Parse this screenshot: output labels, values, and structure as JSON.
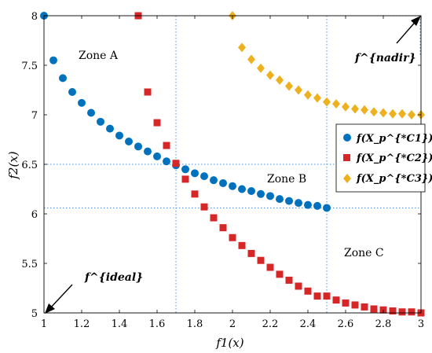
{
  "chart_data": {
    "type": "scatter",
    "xlabel": "f1(x)",
    "ylabel": "f2(x)",
    "xlim": [
      1,
      3
    ],
    "ylim": [
      5,
      8
    ],
    "xticks": [
      "1",
      "1.2",
      "1.4",
      "1.6",
      "1.8",
      "2",
      "2.2",
      "2.4",
      "2.6",
      "2.8",
      "3"
    ],
    "yticks": [
      "5",
      "5.5",
      "6",
      "6.5",
      "7",
      "7.5",
      "8"
    ],
    "grid": false,
    "legend_position": "right",
    "series": [
      {
        "name": "f(X_p^{*C1})",
        "marker": "circle",
        "color": "#0072BD",
        "points": [
          [
            1.0,
            8.0
          ],
          [
            1.05,
            7.55
          ],
          [
            1.1,
            7.37
          ],
          [
            1.15,
            7.23
          ],
          [
            1.2,
            7.12
          ],
          [
            1.25,
            7.02
          ],
          [
            1.3,
            6.93
          ],
          [
            1.35,
            6.86
          ],
          [
            1.4,
            6.79
          ],
          [
            1.45,
            6.73
          ],
          [
            1.5,
            6.68
          ],
          [
            1.55,
            6.63
          ],
          [
            1.6,
            6.58
          ],
          [
            1.65,
            6.53
          ],
          [
            1.7,
            6.49
          ],
          [
            1.75,
            6.45
          ],
          [
            1.8,
            6.41
          ],
          [
            1.85,
            6.38
          ],
          [
            1.9,
            6.34
          ],
          [
            1.95,
            6.31
          ],
          [
            2.0,
            6.28
          ],
          [
            2.05,
            6.25
          ],
          [
            2.1,
            6.23
          ],
          [
            2.15,
            6.2
          ],
          [
            2.2,
            6.18
          ],
          [
            2.25,
            6.15
          ],
          [
            2.3,
            6.13
          ],
          [
            2.35,
            6.11
          ],
          [
            2.4,
            6.09
          ],
          [
            2.45,
            6.08
          ],
          [
            2.5,
            6.06
          ]
        ]
      },
      {
        "name": "f(X_p^{*C2})",
        "marker": "square",
        "color": "#D62728",
        "points": [
          [
            1.5,
            8.0
          ],
          [
            1.55,
            7.23
          ],
          [
            1.6,
            6.92
          ],
          [
            1.65,
            6.69
          ],
          [
            1.7,
            6.51
          ],
          [
            1.75,
            6.35
          ],
          [
            1.8,
            6.2
          ],
          [
            1.85,
            6.07
          ],
          [
            1.9,
            5.96
          ],
          [
            1.95,
            5.86
          ],
          [
            2.0,
            5.76
          ],
          [
            2.05,
            5.68
          ],
          [
            2.1,
            5.6
          ],
          [
            2.15,
            5.53
          ],
          [
            2.2,
            5.46
          ],
          [
            2.25,
            5.39
          ],
          [
            2.3,
            5.33
          ],
          [
            2.35,
            5.27
          ],
          [
            2.4,
            5.22
          ],
          [
            2.45,
            5.17
          ],
          [
            2.5,
            5.17
          ],
          [
            2.55,
            5.13
          ],
          [
            2.6,
            5.1
          ],
          [
            2.65,
            5.08
          ],
          [
            2.7,
            5.06
          ],
          [
            2.75,
            5.04
          ],
          [
            2.8,
            5.03
          ],
          [
            2.85,
            5.02
          ],
          [
            2.9,
            5.01
          ],
          [
            2.95,
            5.01
          ],
          [
            3.0,
            5.0
          ]
        ]
      },
      {
        "name": "f(X_p^{*C3})",
        "marker": "diamond",
        "color": "#EDB120",
        "points": [
          [
            2.0,
            8.0
          ],
          [
            2.05,
            7.68
          ],
          [
            2.1,
            7.56
          ],
          [
            2.15,
            7.47
          ],
          [
            2.2,
            7.4
          ],
          [
            2.25,
            7.35
          ],
          [
            2.3,
            7.29
          ],
          [
            2.35,
            7.25
          ],
          [
            2.4,
            7.2
          ],
          [
            2.45,
            7.17
          ],
          [
            2.5,
            7.13
          ],
          [
            2.55,
            7.11
          ],
          [
            2.6,
            7.08
          ],
          [
            2.65,
            7.06
          ],
          [
            2.7,
            7.05
          ],
          [
            2.75,
            7.03
          ],
          [
            2.8,
            7.02
          ],
          [
            2.85,
            7.01
          ],
          [
            2.9,
            7.01
          ],
          [
            2.95,
            7.0
          ],
          [
            3.0,
            7.0
          ]
        ]
      }
    ],
    "reference_lines": {
      "vertical": [
        1.7,
        2.5
      ],
      "horizontal": [
        6.5,
        6.06
      ]
    },
    "annotations": {
      "zone_a": "Zone A",
      "zone_b": "Zone B",
      "zone_c": "Zone C",
      "nadir": "f^{nadir}",
      "ideal": "f^{ideal}"
    }
  },
  "colors": {
    "series1": "#0072BD",
    "series2": "#D62728",
    "series3": "#EDB120",
    "reference": "#4A90D9"
  }
}
